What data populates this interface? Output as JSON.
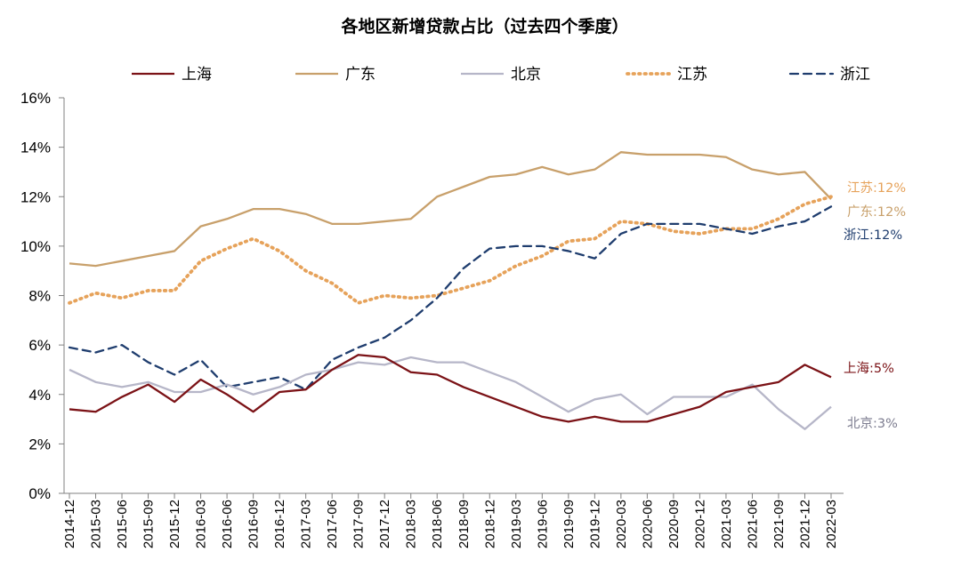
{
  "chart_data": {
    "type": "line",
    "title": "各地区新增贷款占比（过去四个季度）",
    "xlabel": "",
    "ylabel": "",
    "ylim": [
      0,
      16
    ],
    "y_ticks": [
      "0%",
      "2%",
      "4%",
      "6%",
      "8%",
      "10%",
      "12%",
      "14%",
      "16%"
    ],
    "legend_position": "top",
    "grid": false,
    "categories": [
      "2014-12",
      "2015-03",
      "2015-06",
      "2015-09",
      "2015-12",
      "2016-03",
      "2016-06",
      "2016-09",
      "2016-12",
      "2017-03",
      "2017-06",
      "2017-09",
      "2017-12",
      "2018-03",
      "2018-06",
      "2018-09",
      "2018-12",
      "2019-03",
      "2019-06",
      "2019-09",
      "2019-12",
      "2020-03",
      "2020-06",
      "2020-09",
      "2020-12",
      "2021-03",
      "2021-06",
      "2021-09",
      "2021-12",
      "2022-03"
    ],
    "series": [
      {
        "name": "上海",
        "color": "#7b1216",
        "style": "solid",
        "end_label": "上海:5%",
        "values": [
          3.4,
          3.3,
          3.9,
          4.4,
          3.7,
          4.6,
          4.0,
          3.3,
          4.1,
          4.2,
          5.0,
          5.6,
          5.5,
          4.9,
          4.8,
          4.3,
          3.9,
          3.5,
          3.1,
          2.9,
          3.1,
          2.9,
          2.9,
          3.2,
          3.5,
          4.1,
          4.3,
          4.5,
          5.2,
          4.7
        ]
      },
      {
        "name": "广东",
        "color": "#c8a06b",
        "style": "solid",
        "end_label": "广东:12%",
        "values": [
          9.3,
          9.2,
          9.4,
          9.6,
          9.8,
          10.8,
          11.1,
          11.5,
          11.5,
          11.3,
          10.9,
          10.9,
          11.0,
          11.1,
          12.0,
          12.4,
          12.8,
          12.9,
          13.2,
          12.9,
          13.1,
          13.8,
          13.7,
          13.7,
          13.7,
          13.6,
          13.1,
          12.9,
          13.0,
          11.9
        ]
      },
      {
        "name": "北京",
        "color": "#b6b6c8",
        "style": "solid",
        "end_label": "北京:3%",
        "values": [
          5.0,
          4.5,
          4.3,
          4.5,
          4.1,
          4.1,
          4.4,
          4.0,
          4.3,
          4.8,
          5.0,
          5.3,
          5.2,
          5.5,
          5.3,
          5.3,
          4.9,
          4.5,
          3.9,
          3.3,
          3.8,
          4.0,
          3.2,
          3.9,
          3.9,
          3.9,
          4.4,
          3.4,
          2.6,
          3.5
        ]
      },
      {
        "name": "江苏",
        "color": "#e6a25a",
        "style": "dotted",
        "end_label": "江苏:12%",
        "values": [
          7.7,
          8.1,
          7.9,
          8.2,
          8.2,
          9.4,
          9.9,
          10.3,
          9.8,
          9.0,
          8.5,
          7.7,
          8.0,
          7.9,
          8.0,
          8.3,
          8.6,
          9.2,
          9.6,
          10.2,
          10.3,
          11.0,
          10.9,
          10.6,
          10.5,
          10.7,
          10.7,
          11.1,
          11.7,
          12.0
        ]
      },
      {
        "name": "浙江",
        "color": "#1f3d6e",
        "style": "dashed",
        "end_label": "浙江:12%",
        "values": [
          5.9,
          5.7,
          6.0,
          5.3,
          4.8,
          5.4,
          4.3,
          4.5,
          4.7,
          4.2,
          5.4,
          5.9,
          6.3,
          7.0,
          7.9,
          9.1,
          9.9,
          10.0,
          10.0,
          9.8,
          9.5,
          10.5,
          10.9,
          10.9,
          10.9,
          10.7,
          10.5,
          10.8,
          11.0,
          11.6
        ]
      }
    ]
  }
}
